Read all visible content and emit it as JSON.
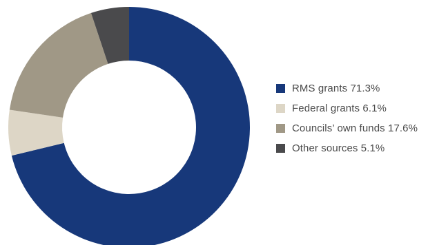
{
  "chart_data": {
    "type": "pie",
    "donut": true,
    "labels": [
      "RMS grants",
      "Federal grants",
      "Councils’ own funds",
      "Other sources"
    ],
    "values": [
      71.3,
      6.1,
      17.6,
      5.1
    ],
    "colors": [
      "#17387a",
      "#ddd6c6",
      "#a09886",
      "#4a4a4c"
    ],
    "legend": {
      "position": "right",
      "items": [
        {
          "text": "RMS grants 71.3%",
          "color": "#17387a"
        },
        {
          "text": "Federal grants 6.1%",
          "color": "#ddd6c6"
        },
        {
          "text": "Councils’ own funds 17.6%",
          "color": "#a09886"
        },
        {
          "text": "Other sources 5.1%",
          "color": "#4a4a4c"
        }
      ]
    }
  }
}
